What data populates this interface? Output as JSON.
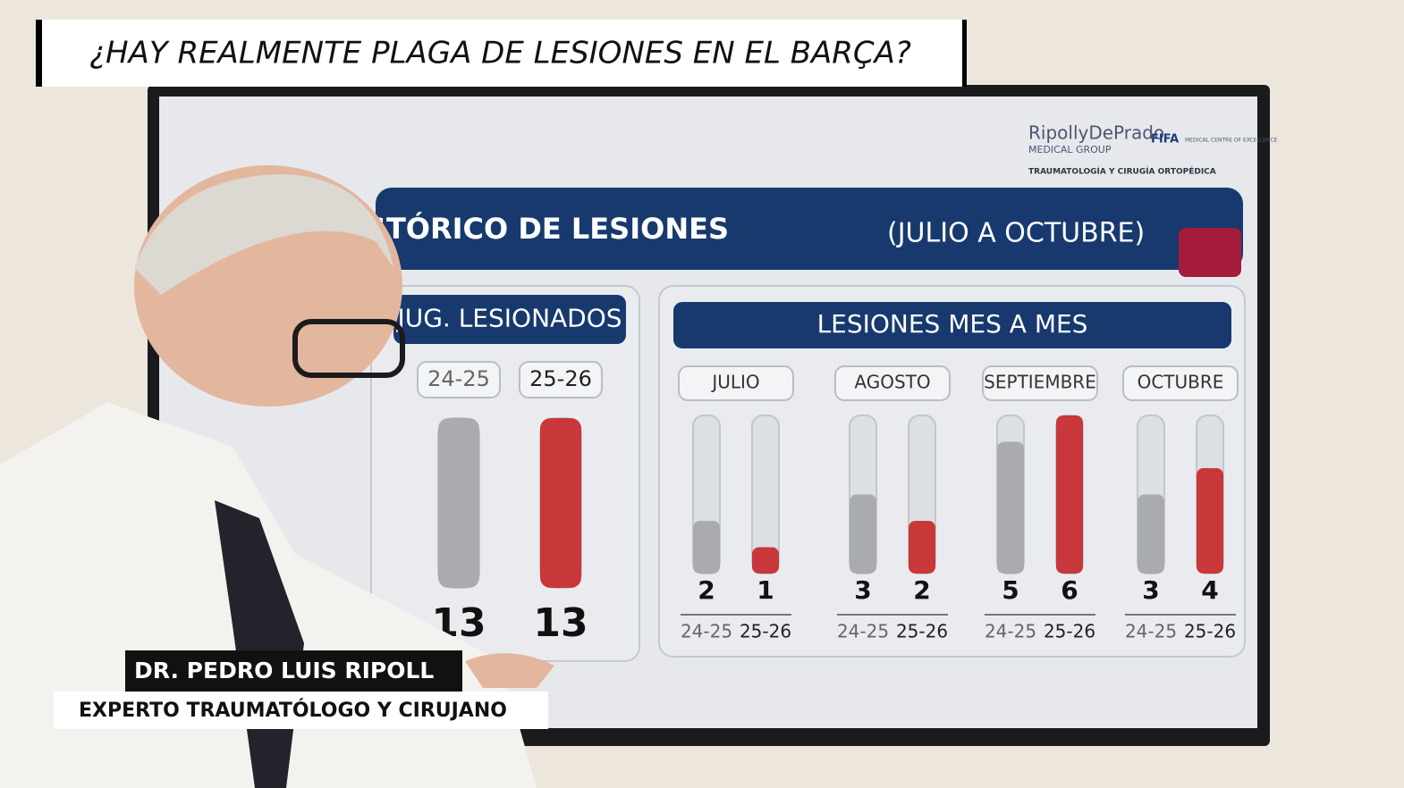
{
  "headline": "¿HAY REALMENTE PLAGA DE LESIONES EN EL BARÇA?",
  "caption": {
    "name": "DR. PEDRO LUIS RIPOLL",
    "role": "EXPERTO TRAUMATÓLOGO Y CIRUJANO"
  },
  "screen": {
    "brand": "RipollyDePrado",
    "brand_sub": "MEDICAL GROUP",
    "fifa": "FIFA",
    "fifa_sub": "MEDICAL CENTRE OF EXCELLENCE",
    "specialty": "TRAUMATOLOGÍA Y CIRUGÍA ORTOPÉDICA",
    "title": "HISTÓRICO DE LESIONES",
    "subtitle": "(JULIO A OCTUBRE)"
  },
  "chart_data": [
    {
      "type": "bar",
      "title": "JUG. LESIONADOS",
      "categories": [
        null
      ],
      "series": [
        {
          "name": "24-25",
          "color": "#a9abae",
          "values": [
            13
          ]
        },
        {
          "name": "25-26",
          "color": "#c8373a",
          "values": [
            13
          ]
        }
      ]
    },
    {
      "type": "bar",
      "title": "LESIONES MES A MES",
      "categories": [
        "JULIO",
        "AGOSTO",
        "SEPTIEMBRE",
        "OCTUBRE"
      ],
      "series": [
        {
          "name": "24-25",
          "color": "#a9abae",
          "values": [
            2,
            3,
            5,
            3
          ]
        },
        {
          "name": "25-26",
          "color": "#c8373a",
          "values": [
            1,
            2,
            6,
            4
          ]
        }
      ]
    }
  ]
}
